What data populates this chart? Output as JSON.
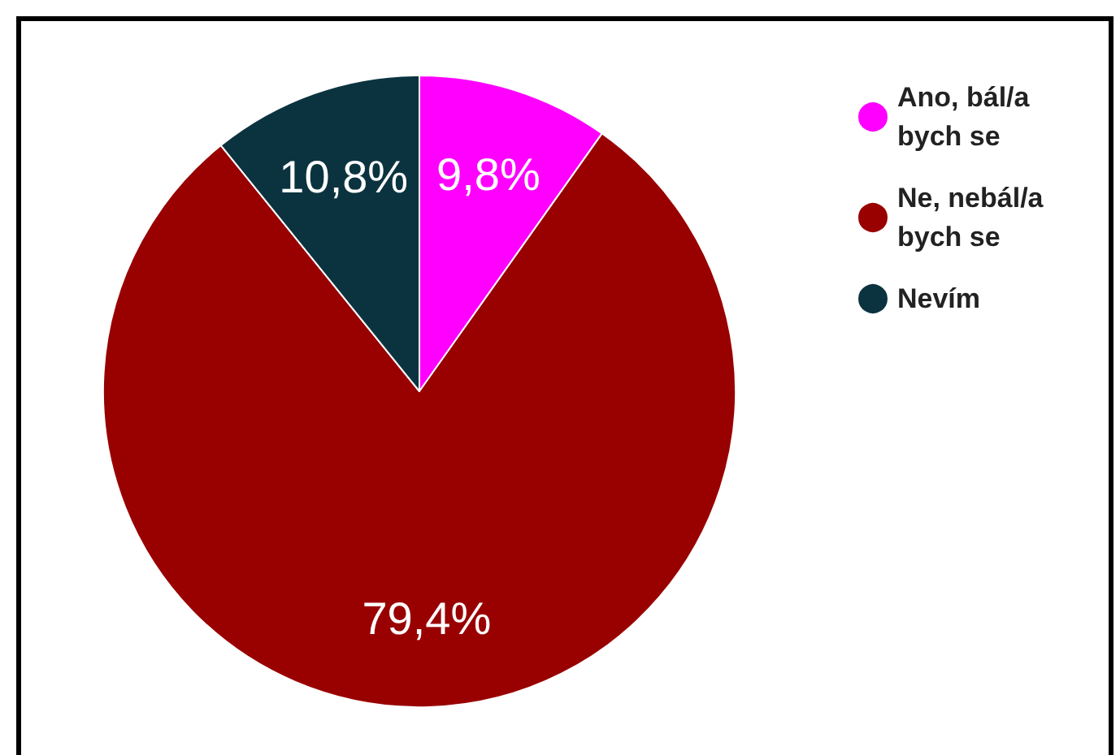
{
  "chart_data": {
    "type": "pie",
    "categories": [
      "Ano, bál/a bych se",
      "Ne, nebál/a bych se",
      "Nevím"
    ],
    "values": [
      9.8,
      79.4,
      10.8
    ],
    "colors": [
      "#ff00ff",
      "#990000",
      "#0b333f"
    ],
    "value_labels": [
      "9,8%",
      "79,4%",
      "10,8%"
    ],
    "legend": "top right"
  }
}
